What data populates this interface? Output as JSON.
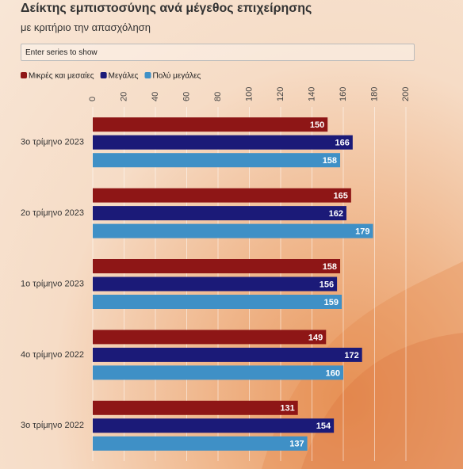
{
  "controls": {
    "search_placeholder": "Enter series to show"
  },
  "chart_data": {
    "type": "hbar",
    "title": "Δείκτης εμπιστοσύνης ανά μέγεθος επιχείρησης",
    "subtitle": "με κριτήριο την απασχόληση",
    "categories": [
      "3ο τρίμηνο 2023",
      "2ο τρίμηνο 2023",
      "1ο τρίμηνο 2023",
      "4ο τρίμηνο 2022",
      "3ο τρίμηνο 2022"
    ],
    "series": [
      {
        "name": "Μικρές και μεσαίες",
        "color": "#8e1616",
        "values": [
          150,
          165,
          158,
          149,
          131
        ]
      },
      {
        "name": "Μεγάλες",
        "color": "#1b1a78",
        "values": [
          166,
          162,
          156,
          172,
          154
        ]
      },
      {
        "name": "Πολύ μεγάλες",
        "color": "#3f90c6",
        "values": [
          158,
          179,
          159,
          160,
          137
        ]
      }
    ],
    "xlim": [
      0,
      200
    ],
    "xticks": [
      0,
      20,
      40,
      60,
      80,
      100,
      120,
      140,
      160,
      180,
      200
    ],
    "grid": true,
    "legend": "top-left"
  }
}
